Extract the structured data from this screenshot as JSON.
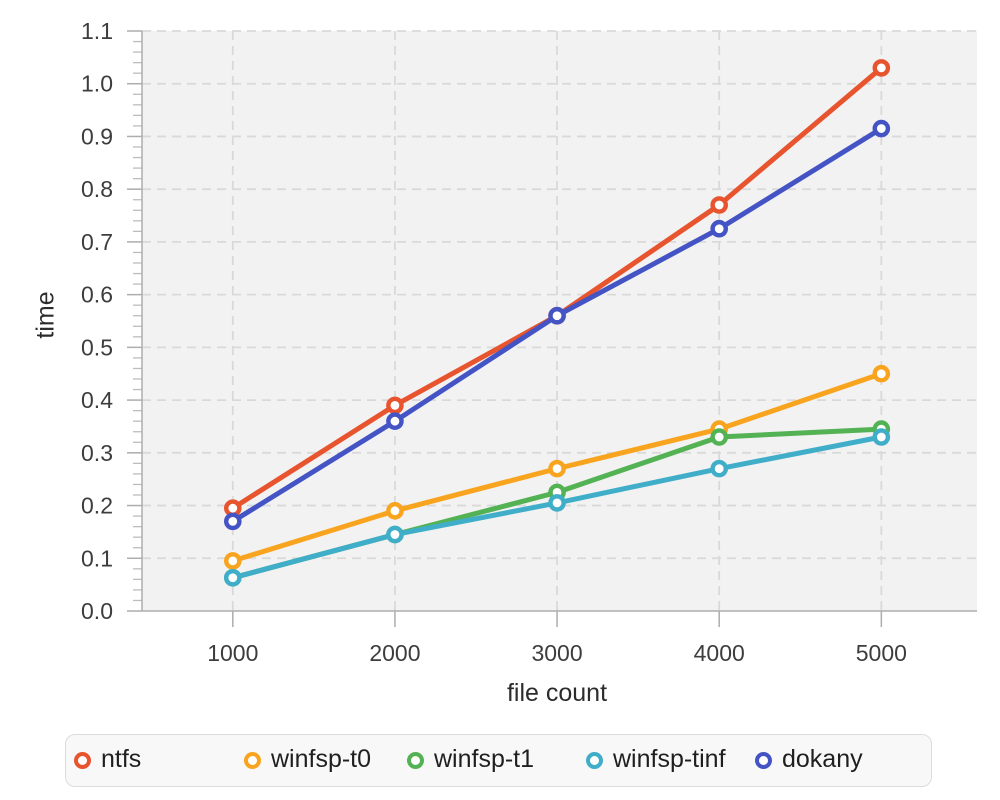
{
  "chart_data": {
    "type": "line",
    "title": "",
    "xlabel": "file count",
    "ylabel": "time",
    "x": [
      1000,
      2000,
      3000,
      4000,
      5000
    ],
    "series": [
      {
        "name": "ntfs",
        "color": "#E8542E",
        "values": [
          0.195,
          0.39,
          0.56,
          0.77,
          1.03
        ]
      },
      {
        "name": "winfsp-t0",
        "color": "#F8A41F",
        "values": [
          0.095,
          0.19,
          0.27,
          0.345,
          0.45
        ]
      },
      {
        "name": "winfsp-t1",
        "color": "#53B253",
        "values": [
          0.063,
          0.145,
          0.225,
          0.33,
          0.345
        ]
      },
      {
        "name": "winfsp-tinf",
        "color": "#40AEC9",
        "values": [
          0.063,
          0.145,
          0.205,
          0.27,
          0.33
        ]
      },
      {
        "name": "dokany",
        "color": "#4454C4",
        "values": [
          0.17,
          0.36,
          0.56,
          0.725,
          0.915
        ]
      }
    ],
    "xlim": [
      440,
      5590
    ],
    "ylim": [
      0,
      1.1
    ],
    "x_ticks": [
      1000,
      2000,
      3000,
      4000,
      5000
    ],
    "x_tick_labels": [
      "1000",
      "2000",
      "3000",
      "4000",
      "5000"
    ],
    "y_ticks": [
      0.0,
      0.1,
      0.2,
      0.3,
      0.4,
      0.5,
      0.6,
      0.7,
      0.8,
      0.9,
      1.0,
      1.1
    ],
    "y_tick_labels": [
      "0.0",
      "0.1",
      "0.2",
      "0.3",
      "0.4",
      "0.5",
      "0.6",
      "0.7",
      "0.8",
      "0.9",
      "1.0",
      "1.1"
    ],
    "y_minor_step": 0.02,
    "grid": true,
    "grid_style": "dashed",
    "plot_background": "#f2f2f2",
    "grid_color": "#d9d9d9",
    "axis_color": "#adadad",
    "tick_label_color": "#3d3d3d",
    "axis_title_color": "#2c2c2c",
    "legend_position": "bottom",
    "marker": "open-circle"
  }
}
